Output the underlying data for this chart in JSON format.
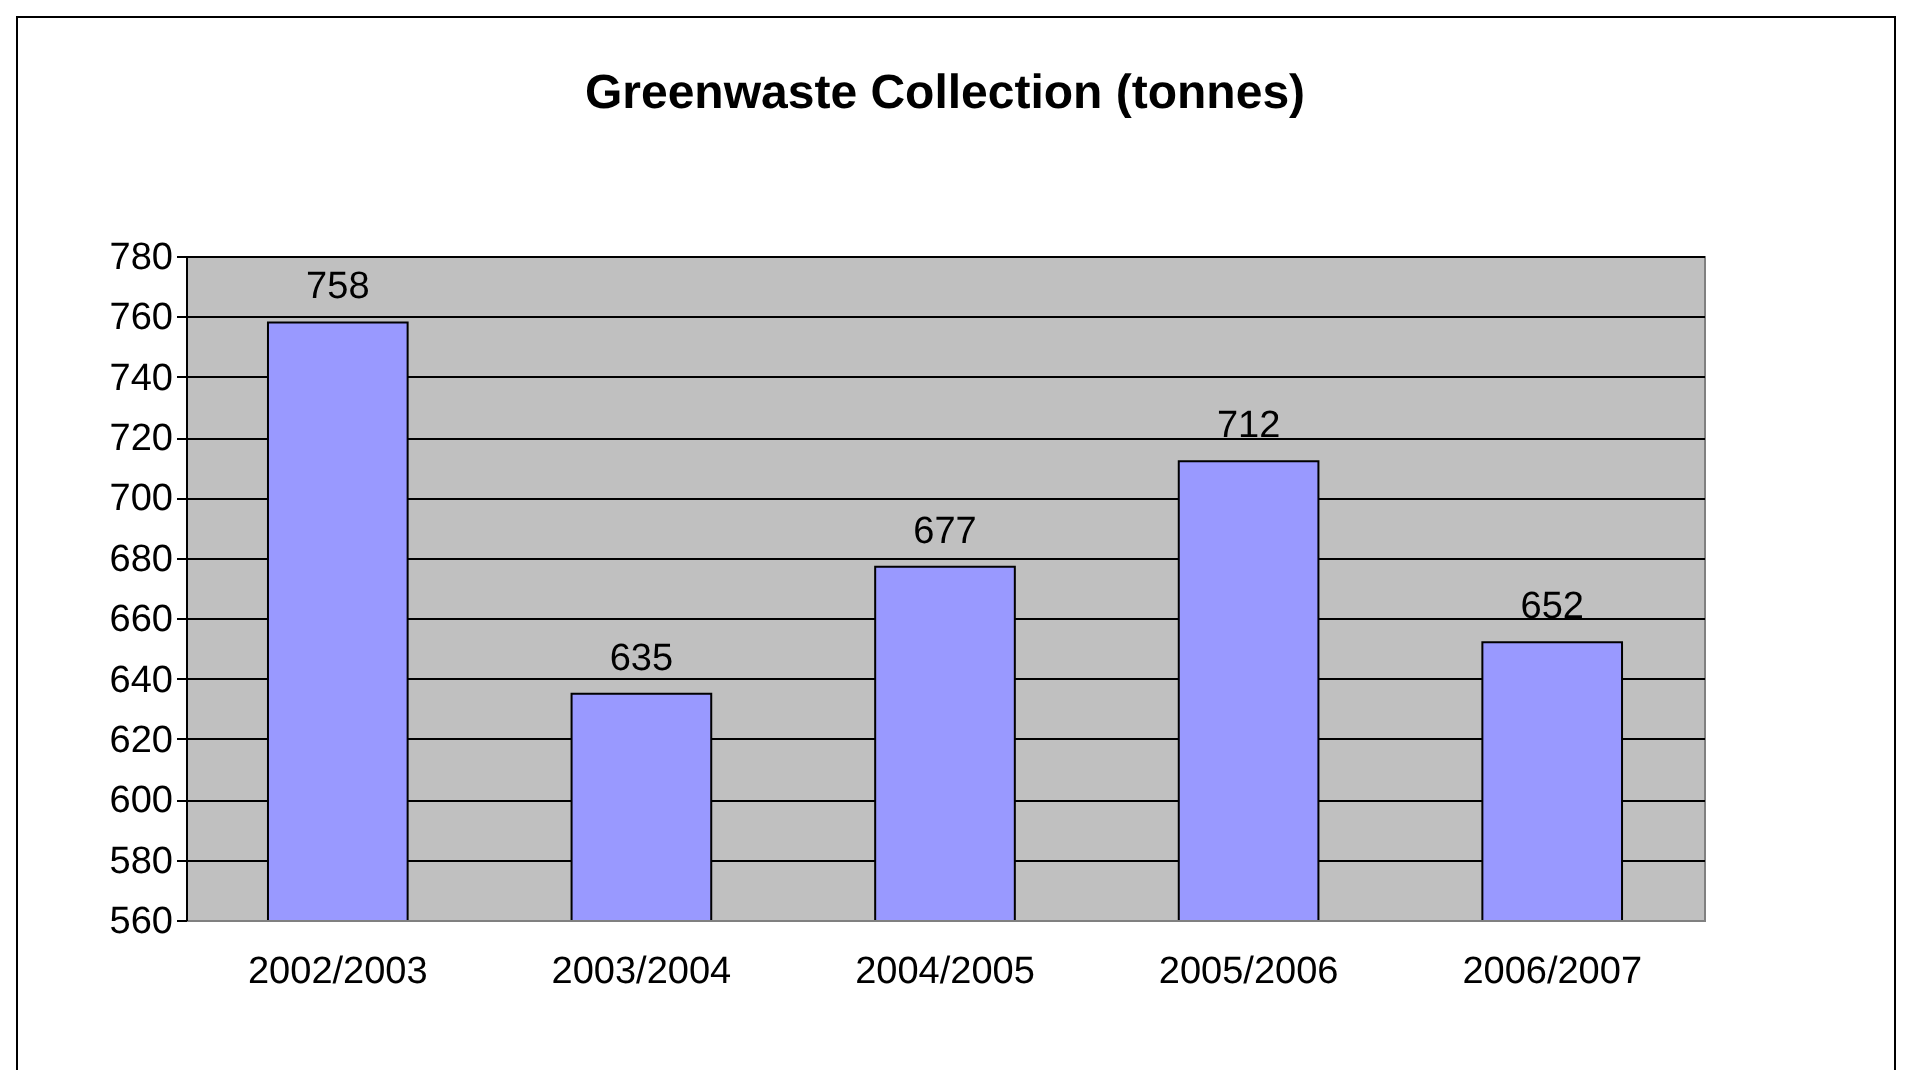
{
  "chart_data": {
    "type": "bar",
    "title": "Greenwaste Collection (tonnes)",
    "categories": [
      "2002/2003",
      "2003/2004",
      "2004/2005",
      "2005/2006",
      "2006/2007"
    ],
    "values": [
      758,
      635,
      677,
      712,
      652
    ],
    "color": "#9999ff",
    "ylim": [
      560,
      780
    ],
    "yticks": [
      560,
      580,
      600,
      620,
      640,
      660,
      680,
      700,
      720,
      740,
      760,
      780
    ],
    "grid": "y",
    "data_labels": true
  }
}
